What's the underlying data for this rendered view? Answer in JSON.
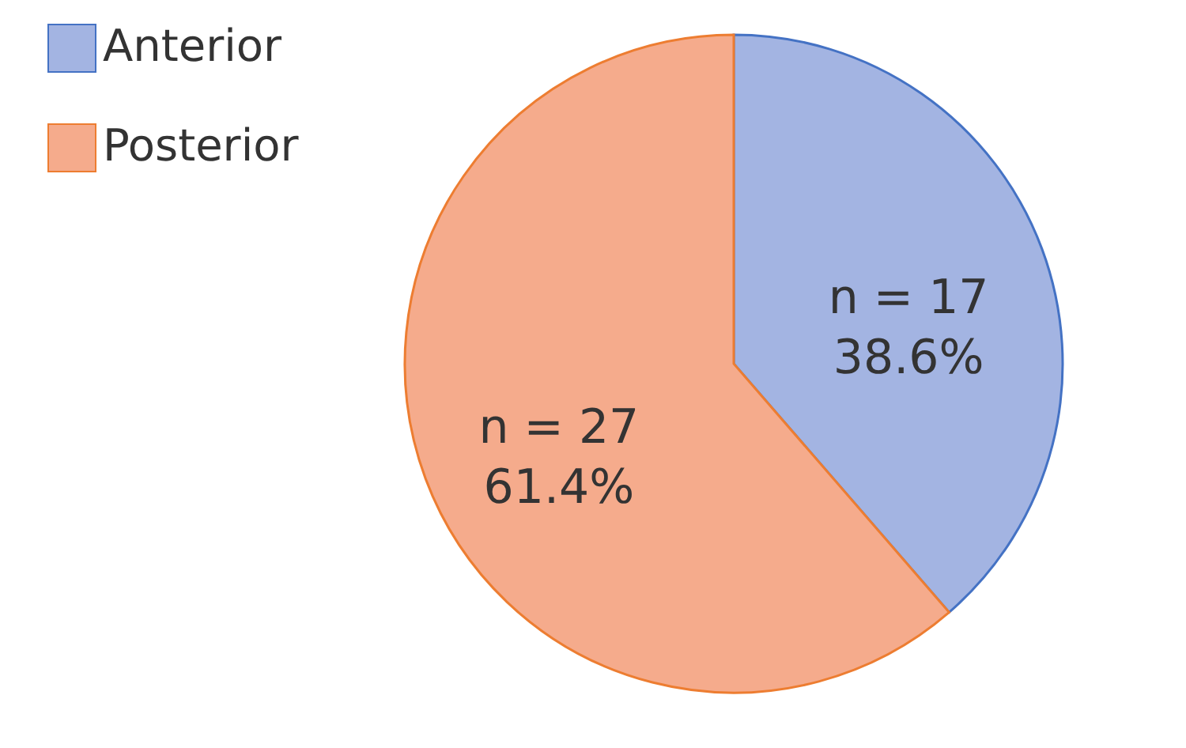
{
  "chart_data": {
    "type": "pie",
    "categories": [
      "Anterior",
      "Posterior"
    ],
    "values": [
      17,
      27
    ],
    "colors": [
      "#a3b4e2",
      "#f5ab8c"
    ],
    "value_labels": [
      "n = 17\n38.6%",
      "n = 27\n61.4%"
    ],
    "legend": "left"
  }
}
